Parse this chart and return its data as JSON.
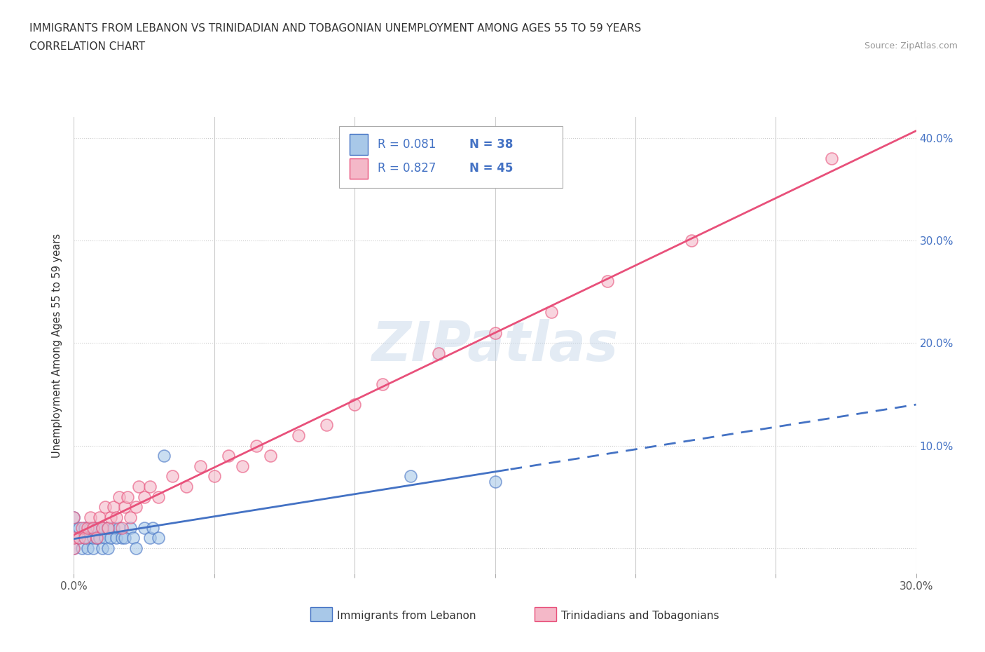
{
  "title_line1": "IMMIGRANTS FROM LEBANON VS TRINIDADIAN AND TOBAGONIAN UNEMPLOYMENT AMONG AGES 55 TO 59 YEARS",
  "title_line2": "CORRELATION CHART",
  "source_text": "Source: ZipAtlas.com",
  "ylabel": "Unemployment Among Ages 55 to 59 years",
  "xlim": [
    0.0,
    0.3
  ],
  "ylim": [
    -0.025,
    0.42
  ],
  "x_ticks": [
    0.0,
    0.05,
    0.1,
    0.15,
    0.2,
    0.25,
    0.3
  ],
  "x_tick_labels": [
    "0.0%",
    "",
    "",
    "",
    "",
    "",
    "30.0%"
  ],
  "y_ticks": [
    0.0,
    0.1,
    0.2,
    0.3,
    0.4
  ],
  "y_tick_labels_right": [
    "",
    "10.0%",
    "20.0%",
    "30.0%",
    "40.0%"
  ],
  "legend_r1": "R = 0.081",
  "legend_n1": "N = 38",
  "legend_r2": "R = 0.827",
  "legend_n2": "N = 45",
  "color_lebanon": "#a8c8e8",
  "color_trini": "#f4b8c8",
  "color_line_lebanon": "#4472c4",
  "color_line_trini": "#e8507a",
  "legend_text_color": "#4472c4",
  "watermark": "ZIPatlas",
  "lebanon_x": [
    0.0,
    0.0,
    0.0,
    0.0,
    0.002,
    0.002,
    0.003,
    0.004,
    0.004,
    0.005,
    0.005,
    0.006,
    0.007,
    0.007,
    0.008,
    0.008,
    0.009,
    0.01,
    0.01,
    0.011,
    0.012,
    0.012,
    0.013,
    0.014,
    0.015,
    0.016,
    0.017,
    0.018,
    0.02,
    0.021,
    0.022,
    0.025,
    0.027,
    0.028,
    0.03,
    0.032,
    0.12,
    0.15
  ],
  "lebanon_y": [
    0.0,
    0.01,
    0.02,
    0.03,
    0.01,
    0.02,
    0.0,
    0.01,
    0.02,
    0.0,
    0.01,
    0.02,
    0.0,
    0.01,
    0.01,
    0.02,
    0.01,
    0.0,
    0.02,
    0.01,
    0.0,
    0.02,
    0.01,
    0.02,
    0.01,
    0.02,
    0.01,
    0.01,
    0.02,
    0.01,
    0.0,
    0.02,
    0.01,
    0.02,
    0.01,
    0.09,
    0.07,
    0.065
  ],
  "trini_x": [
    0.0,
    0.0,
    0.0,
    0.002,
    0.003,
    0.004,
    0.005,
    0.006,
    0.007,
    0.008,
    0.009,
    0.01,
    0.011,
    0.012,
    0.013,
    0.014,
    0.015,
    0.016,
    0.017,
    0.018,
    0.019,
    0.02,
    0.022,
    0.023,
    0.025,
    0.027,
    0.03,
    0.035,
    0.04,
    0.045,
    0.05,
    0.055,
    0.06,
    0.065,
    0.07,
    0.08,
    0.09,
    0.1,
    0.11,
    0.13,
    0.15,
    0.17,
    0.19,
    0.22,
    0.27
  ],
  "trini_y": [
    0.0,
    0.01,
    0.03,
    0.01,
    0.02,
    0.01,
    0.02,
    0.03,
    0.02,
    0.01,
    0.03,
    0.02,
    0.04,
    0.02,
    0.03,
    0.04,
    0.03,
    0.05,
    0.02,
    0.04,
    0.05,
    0.03,
    0.04,
    0.06,
    0.05,
    0.06,
    0.05,
    0.07,
    0.06,
    0.08,
    0.07,
    0.09,
    0.08,
    0.1,
    0.09,
    0.11,
    0.12,
    0.14,
    0.16,
    0.19,
    0.21,
    0.23,
    0.26,
    0.3,
    0.38
  ]
}
